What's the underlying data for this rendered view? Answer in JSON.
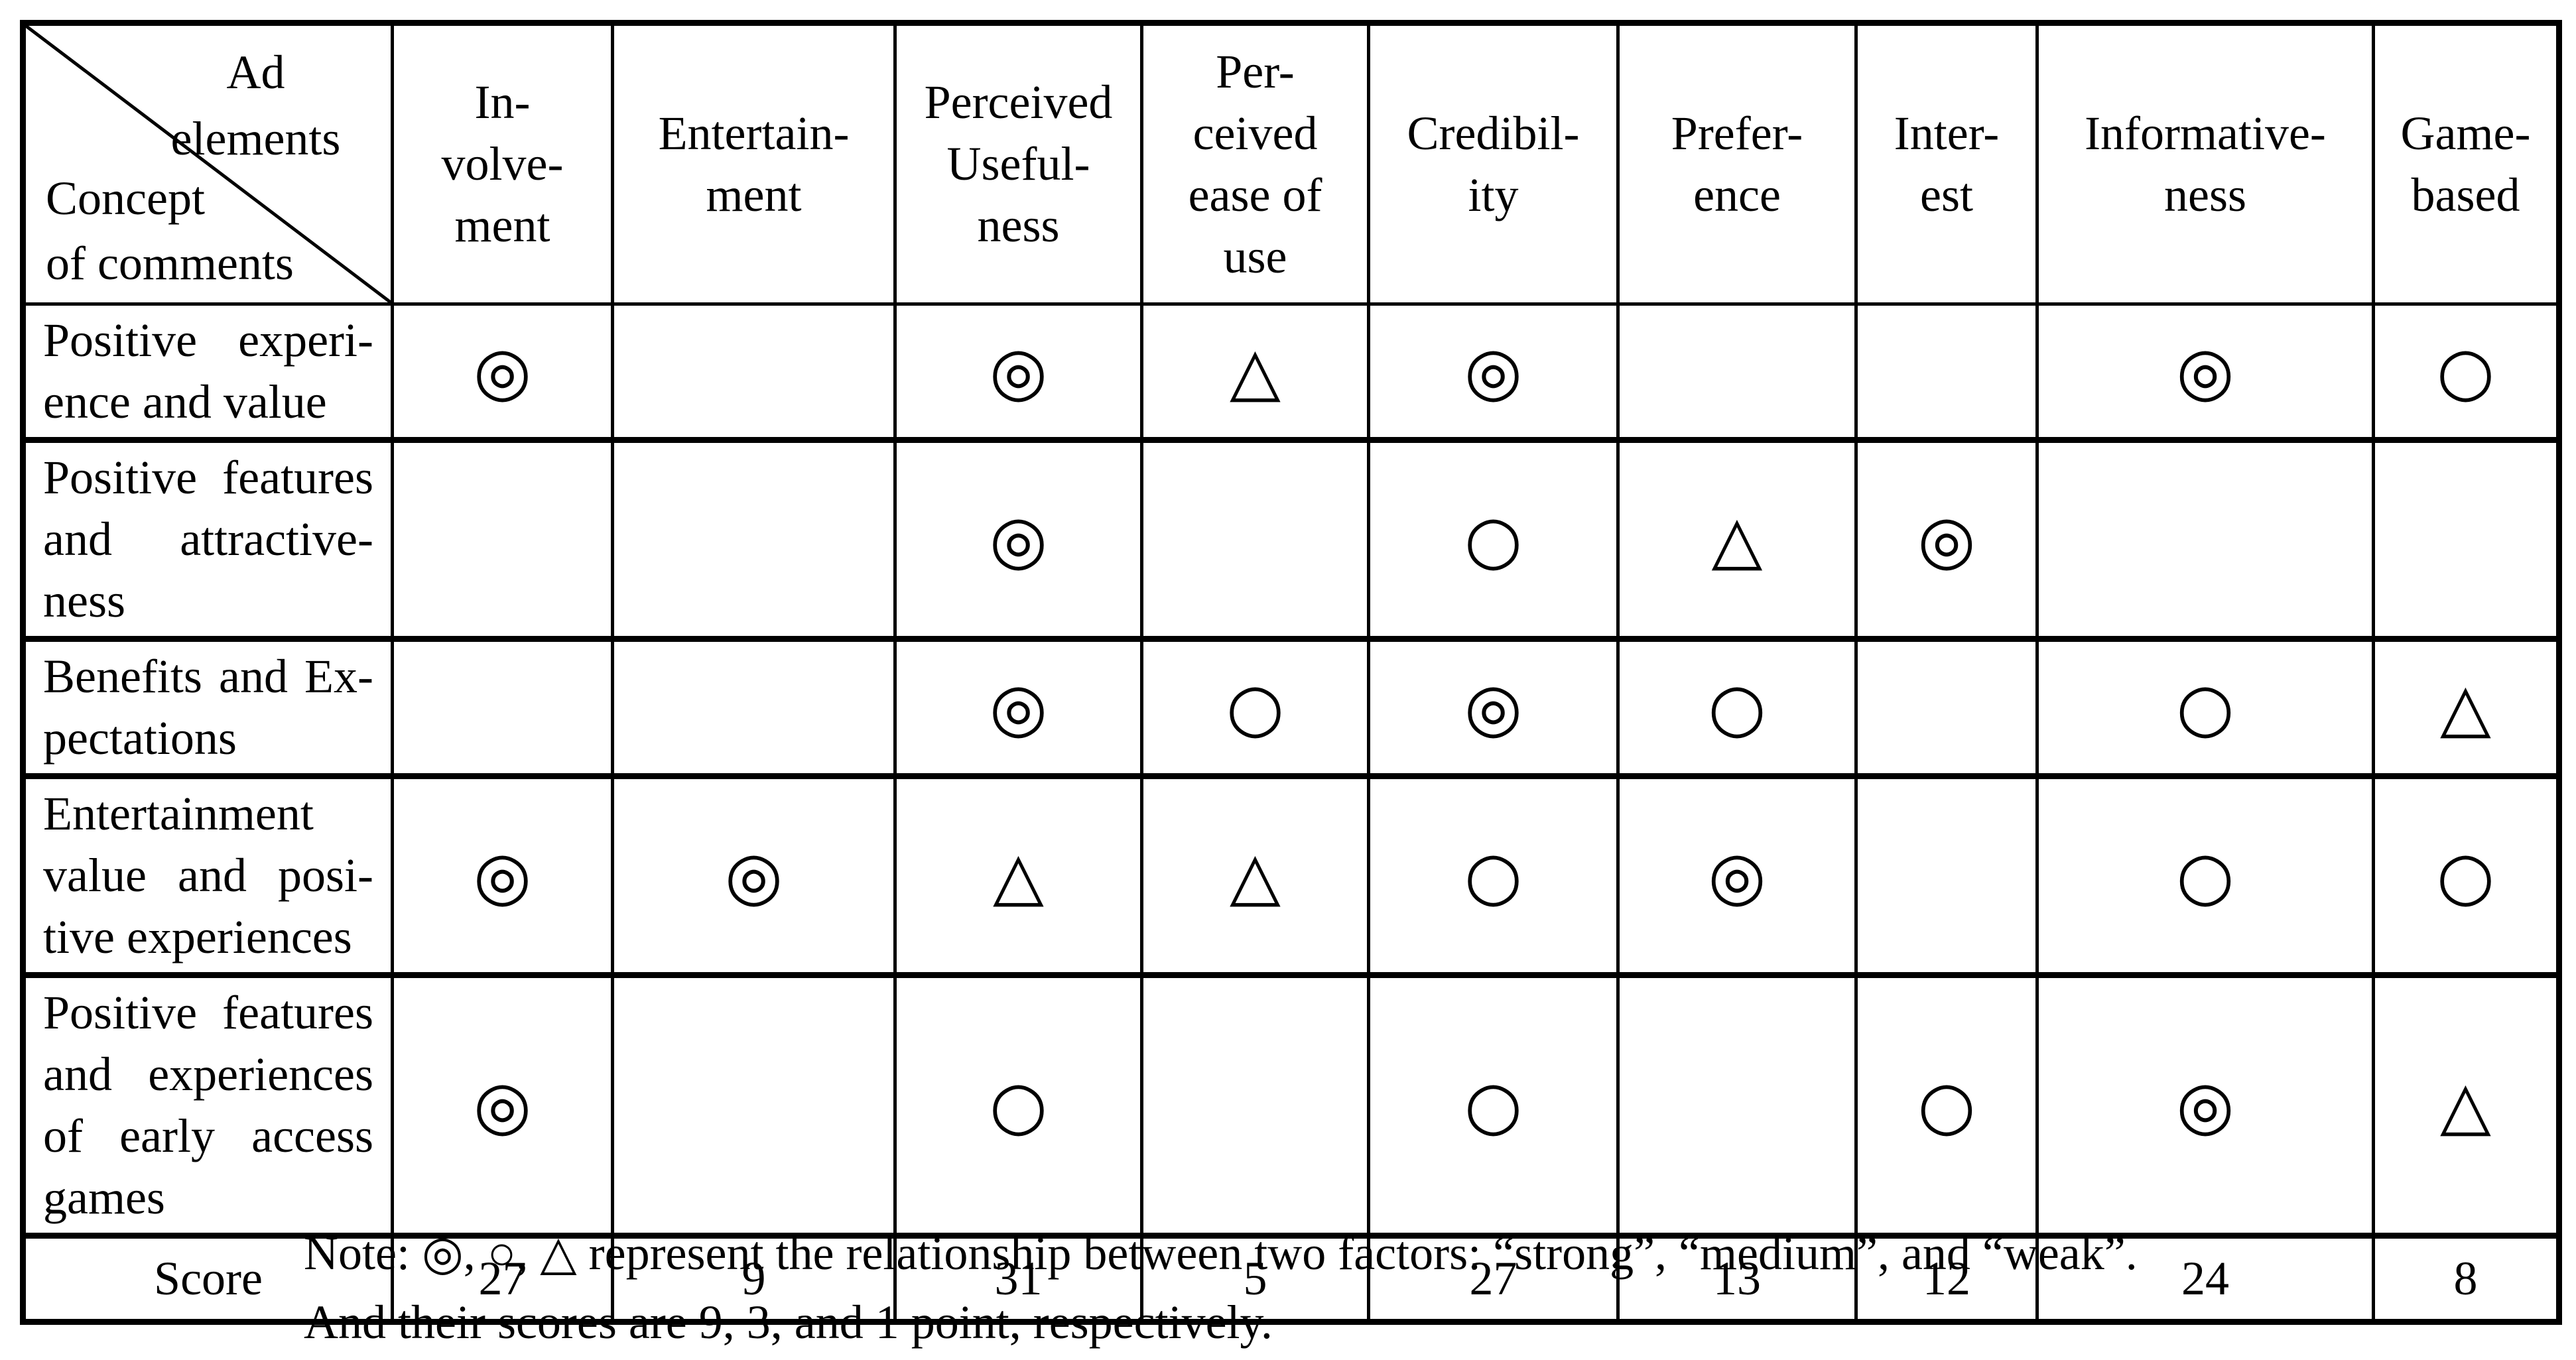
{
  "table": {
    "corner": {
      "top_label": "Ad\nelements",
      "bottom_label": "Concept\nof comments"
    },
    "columns": [
      "In-\nvolve-\nment",
      "Entertain-\nment",
      "Perceived\nUseful-\nness",
      "Per-\nceived\nease of\nuse",
      "Credibil-\nity",
      "Prefer-\nence",
      "Inter-\nest",
      "Informative-\nness",
      "Game-\nbased"
    ],
    "rows": [
      {
        "label": "Positive experi-\nence and value",
        "cells": [
          "◎",
          "",
          "◎",
          "△",
          "◎",
          "",
          "",
          "◎",
          "○"
        ]
      },
      {
        "label": "Positive features\nand attractive-\nness",
        "cells": [
          "",
          "",
          "◎",
          "",
          "○",
          "△",
          "◎",
          "",
          ""
        ]
      },
      {
        "label": "Benefits and Ex-\npectations",
        "cells": [
          "",
          "",
          "◎",
          "○",
          "◎",
          "○",
          "",
          "○",
          "△"
        ]
      },
      {
        "label": "Entertainment\nvalue and posi-\ntive experiences",
        "cells": [
          "◎",
          "◎",
          "△",
          "△",
          "○",
          "◎",
          "",
          "○",
          "○"
        ]
      },
      {
        "label": "Positive features\nand experiences\nof early access\ngames",
        "cells": [
          "◎",
          "",
          "○",
          "",
          "○",
          "",
          "○",
          "◎",
          "△"
        ]
      }
    ],
    "score_label": "Score",
    "scores": [
      27,
      9,
      31,
      5,
      27,
      13,
      12,
      24,
      8
    ]
  },
  "legend": {
    "strong_symbol": "◎",
    "medium_symbol": "○",
    "weak_symbol": "△",
    "strong_points": 9,
    "medium_points": 3,
    "weak_points": 1
  },
  "note": {
    "line1": "Note: ◎, ○, △ represent the relationship between two factors: “strong”, “medium”, and “weak”.",
    "line2": "And their scores are 9, 3, and 1 point, respectively."
  }
}
